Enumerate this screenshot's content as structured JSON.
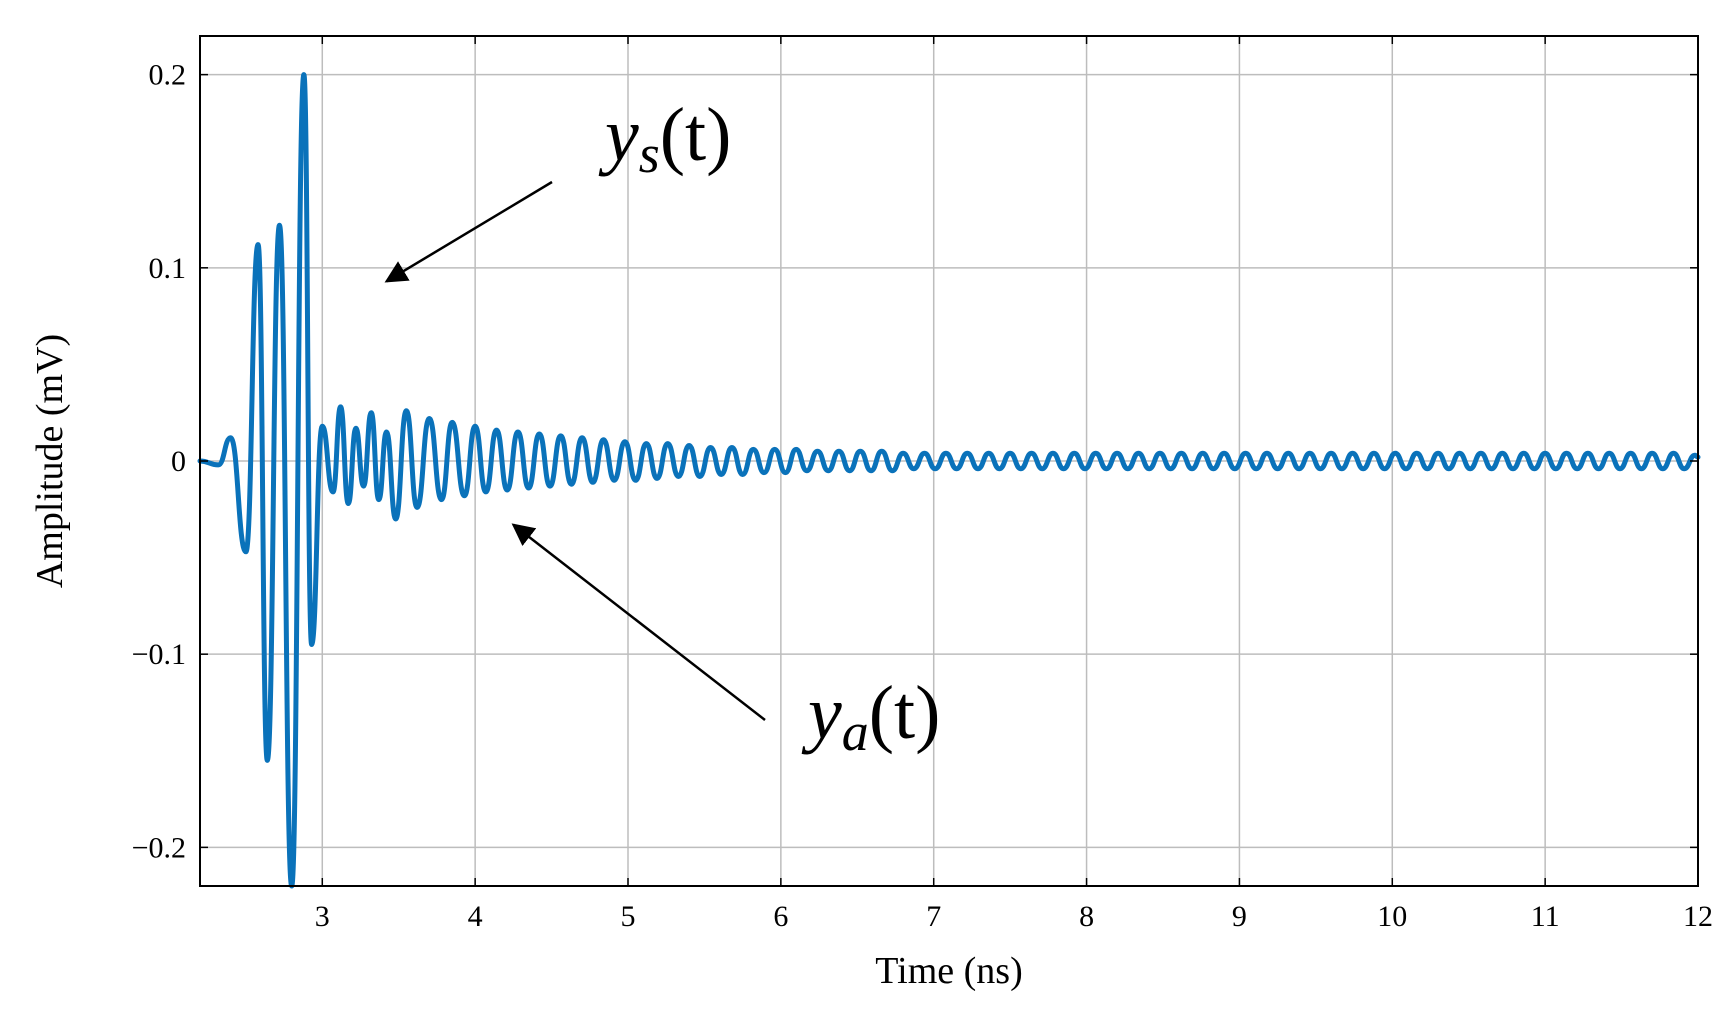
{
  "chart_data": {
    "type": "line",
    "title": "",
    "xlabel": "Time (ns)",
    "ylabel": "Amplitude (mV)",
    "xlim": [
      2.2,
      12
    ],
    "ylim": [
      -0.22,
      0.22
    ],
    "grid": true,
    "x_ticks": [
      3,
      4,
      5,
      6,
      7,
      8,
      9,
      10,
      11,
      12
    ],
    "y_ticks": [
      -0.2,
      -0.1,
      0,
      0.1,
      0.2
    ],
    "x_tick_labels": [
      "3",
      "4",
      "5",
      "6",
      "7",
      "8",
      "9",
      "10",
      "11",
      "12"
    ],
    "y_tick_labels": [
      "−0.2",
      "−0.1",
      "0",
      "0.1",
      "0.2"
    ],
    "line_color": "#0a72ba",
    "series": [
      {
        "name": "",
        "x": [
          2.2,
          2.32,
          2.4,
          2.5,
          2.58,
          2.64,
          2.72,
          2.8,
          2.88,
          2.93,
          3.0,
          3.07,
          3.12,
          3.17,
          3.22,
          3.27,
          3.32,
          3.37,
          3.42,
          3.48,
          3.55,
          3.62,
          3.7,
          3.78,
          3.85,
          3.93,
          4.0,
          4.07,
          4.14,
          4.21,
          4.28,
          4.35,
          4.42,
          4.49,
          4.56,
          4.63,
          4.7,
          4.77,
          4.84,
          4.91,
          4.98,
          5.05,
          5.12,
          5.19,
          5.26,
          5.33,
          5.4,
          5.47,
          5.54,
          5.61,
          5.68,
          5.75,
          5.82,
          5.89,
          5.96,
          6.03,
          6.1,
          6.17,
          6.24,
          6.31,
          6.38,
          6.45,
          6.52,
          6.59,
          6.66,
          6.73,
          6.8,
          6.87,
          6.94,
          7.01,
          7.08,
          7.15,
          7.22,
          7.29,
          7.36,
          7.43,
          7.5,
          7.57,
          7.64,
          7.71,
          7.78,
          7.85,
          7.92,
          7.99,
          8.06,
          8.13,
          8.2,
          8.27,
          8.34,
          8.41,
          8.48,
          8.55,
          8.62,
          8.69,
          8.76,
          8.83,
          8.9,
          8.97,
          9.04,
          9.11,
          9.18,
          9.25,
          9.32,
          9.39,
          9.46,
          9.53,
          9.6,
          9.67,
          9.74,
          9.81,
          9.88,
          9.95,
          10.02,
          10.09,
          10.16,
          10.23,
          10.3,
          10.37,
          10.44,
          10.51,
          10.58,
          10.65,
          10.72,
          10.79,
          10.86,
          10.93,
          11.0,
          11.07,
          11.14,
          11.21,
          11.28,
          11.35,
          11.42,
          11.49,
          11.56,
          11.63,
          11.7,
          11.77,
          11.84,
          11.91,
          11.98,
          12.0
        ],
        "y": [
          0.0,
          -0.002,
          0.012,
          -0.047,
          0.112,
          -0.155,
          0.122,
          -0.22,
          0.2,
          -0.095,
          0.018,
          -0.016,
          0.028,
          -0.022,
          0.017,
          -0.013,
          0.025,
          -0.02,
          0.015,
          -0.03,
          0.026,
          -0.024,
          0.022,
          -0.02,
          0.02,
          -0.018,
          0.018,
          -0.016,
          0.016,
          -0.015,
          0.015,
          -0.014,
          0.014,
          -0.013,
          0.013,
          -0.012,
          0.012,
          -0.011,
          0.011,
          -0.01,
          0.01,
          -0.01,
          0.009,
          -0.009,
          0.009,
          -0.008,
          0.008,
          -0.008,
          0.007,
          -0.007,
          0.007,
          -0.007,
          0.006,
          -0.006,
          0.006,
          -0.006,
          0.006,
          -0.005,
          0.005,
          -0.005,
          0.005,
          -0.005,
          0.005,
          -0.005,
          0.005,
          -0.005,
          0.004,
          -0.004,
          0.004,
          -0.004,
          0.004,
          -0.004,
          0.004,
          -0.004,
          0.004,
          -0.004,
          0.004,
          -0.004,
          0.004,
          -0.004,
          0.004,
          -0.004,
          0.004,
          -0.004,
          0.004,
          -0.004,
          0.004,
          -0.004,
          0.004,
          -0.004,
          0.004,
          -0.004,
          0.004,
          -0.004,
          0.004,
          -0.004,
          0.004,
          -0.004,
          0.004,
          -0.004,
          0.004,
          -0.004,
          0.004,
          -0.004,
          0.004,
          -0.004,
          0.004,
          -0.004,
          0.004,
          -0.004,
          0.004,
          -0.004,
          0.004,
          -0.004,
          0.004,
          -0.004,
          0.004,
          -0.004,
          0.004,
          -0.004,
          0.004,
          -0.004,
          0.004,
          -0.004,
          0.004,
          -0.004,
          0.004,
          -0.004,
          0.004,
          -0.004,
          0.004,
          -0.004,
          0.004,
          -0.004,
          0.004,
          -0.004,
          0.004,
          -0.004,
          0.004,
          -0.004,
          0.003,
          0.002
        ]
      }
    ],
    "annotations": [
      {
        "id": "ys",
        "base": "y",
        "sub": "s",
        "tail": "(t)",
        "points_to": {
          "x": 3.42,
          "y": 0.093
        }
      },
      {
        "id": "ya",
        "base": "y",
        "sub": "a",
        "tail": "(t)",
        "points_to": {
          "x": 4.25,
          "y": -0.033
        }
      }
    ]
  }
}
